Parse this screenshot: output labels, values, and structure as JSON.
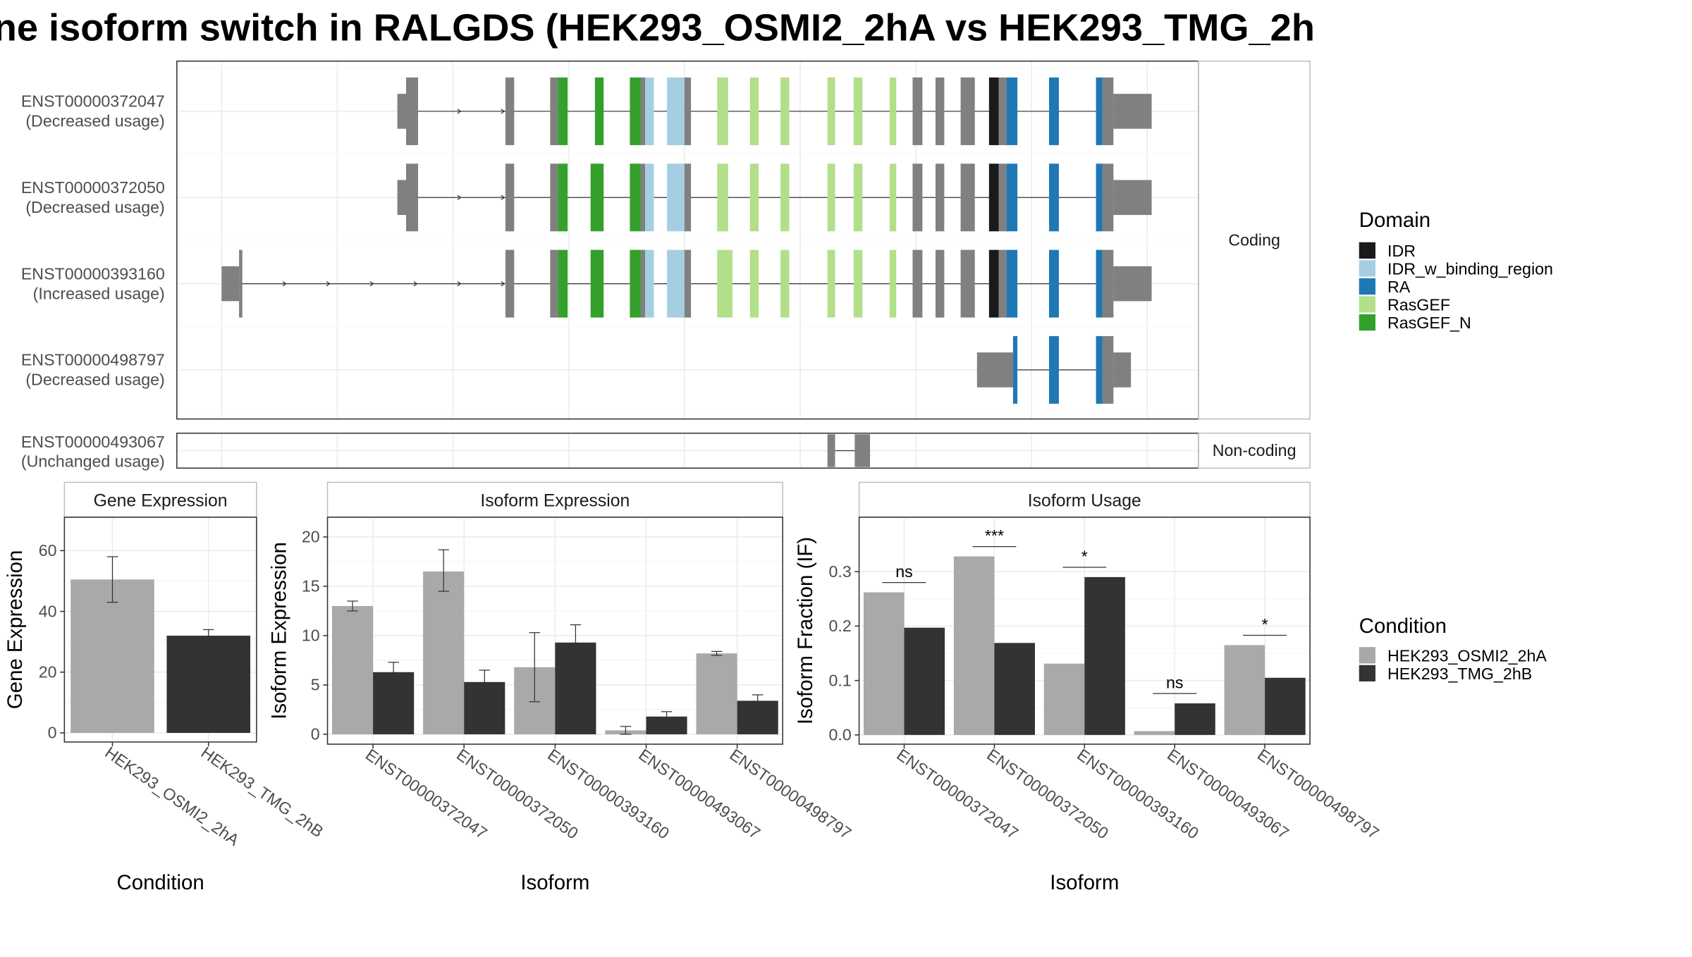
{
  "title": "ne isoform switch in RALGDS (HEK293_OSMI2_2hA vs HEK293_TMG_2h",
  "colors": {
    "IDR": "#1a1a1a",
    "IDR_w_binding_region": "#a6cee3",
    "RA": "#1f78b4",
    "RasGEF": "#b2df8a",
    "RasGEF_N": "#33a02c",
    "none": "#808080",
    "cond_a": "#a9a9a9",
    "cond_b": "#333333"
  },
  "structure": {
    "facet_coding": "Coding",
    "facet_noncoding": "Non-coding",
    "transcripts": [
      {
        "id": "ENST00000372047",
        "usage": "(Decreased usage)",
        "group": "coding",
        "start": 364,
        "end": 1055,
        "exons": [
          [
            364,
            372,
            "n"
          ],
          [
            372,
            383,
            "n"
          ],
          [
            463,
            471,
            "n"
          ],
          [
            504,
            511,
            "n"
          ],
          [
            511,
            520,
            "RasGEF_N"
          ],
          [
            545,
            553,
            "RasGEF_N"
          ],
          [
            577,
            587,
            "RasGEF_N"
          ],
          [
            587,
            591,
            "n"
          ],
          [
            591,
            599,
            "IDR_w_binding_region"
          ],
          [
            611,
            627,
            "IDR_w_binding_region"
          ],
          [
            627,
            633,
            "n"
          ],
          [
            657,
            667,
            "RasGEF"
          ],
          [
            687,
            695,
            "RasGEF"
          ],
          [
            715,
            723,
            "RasGEF"
          ],
          [
            758,
            765,
            "RasGEF"
          ],
          [
            782,
            790,
            "RasGEF"
          ],
          [
            815,
            821,
            "RasGEF"
          ],
          [
            836,
            845,
            "n"
          ],
          [
            857,
            865,
            "n"
          ],
          [
            880,
            893,
            "n"
          ],
          [
            906,
            915,
            "IDR"
          ],
          [
            915,
            922,
            "n"
          ],
          [
            922,
            932,
            "RA"
          ],
          [
            961,
            970,
            "RA"
          ],
          [
            1004,
            1010,
            "RA"
          ],
          [
            1010,
            1020,
            "n"
          ],
          [
            1020,
            1055,
            "n"
          ]
        ],
        "utr": [
          [
            364,
            372
          ],
          [
            1020,
            1055
          ]
        ],
        "arrows": [
          422,
          462
        ]
      },
      {
        "id": "ENST00000372050",
        "usage": "(Decreased usage)",
        "group": "coding",
        "start": 364,
        "end": 1055,
        "exons": [
          [
            364,
            372,
            "n"
          ],
          [
            372,
            383,
            "n"
          ],
          [
            463,
            471,
            "n"
          ],
          [
            504,
            511,
            "n"
          ],
          [
            511,
            520,
            "RasGEF_N"
          ],
          [
            541,
            553,
            "RasGEF_N"
          ],
          [
            577,
            587,
            "RasGEF_N"
          ],
          [
            587,
            591,
            "n"
          ],
          [
            591,
            599,
            "IDR_w_binding_region"
          ],
          [
            611,
            627,
            "IDR_w_binding_region"
          ],
          [
            627,
            633,
            "n"
          ],
          [
            657,
            667,
            "RasGEF"
          ],
          [
            687,
            695,
            "RasGEF"
          ],
          [
            715,
            723,
            "RasGEF"
          ],
          [
            758,
            765,
            "RasGEF"
          ],
          [
            782,
            790,
            "RasGEF"
          ],
          [
            815,
            821,
            "RasGEF"
          ],
          [
            836,
            845,
            "n"
          ],
          [
            857,
            865,
            "n"
          ],
          [
            880,
            893,
            "n"
          ],
          [
            906,
            915,
            "IDR"
          ],
          [
            915,
            922,
            "n"
          ],
          [
            922,
            932,
            "RA"
          ],
          [
            961,
            970,
            "RA"
          ],
          [
            1004,
            1010,
            "RA"
          ],
          [
            1010,
            1020,
            "n"
          ],
          [
            1020,
            1055,
            "n"
          ]
        ],
        "utr": [
          [
            364,
            372
          ],
          [
            1020,
            1055
          ]
        ],
        "arrows": [
          422,
          462
        ]
      },
      {
        "id": "ENST00000393160",
        "usage": "(Increased usage)",
        "group": "coding",
        "start": 203,
        "end": 1055,
        "exons": [
          [
            203,
            219,
            "n"
          ],
          [
            219,
            222,
            "n"
          ],
          [
            463,
            471,
            "n"
          ],
          [
            504,
            511,
            "n"
          ],
          [
            511,
            520,
            "RasGEF_N"
          ],
          [
            541,
            553,
            "RasGEF_N"
          ],
          [
            577,
            587,
            "RasGEF_N"
          ],
          [
            587,
            591,
            "n"
          ],
          [
            591,
            599,
            "IDR_w_binding_region"
          ],
          [
            611,
            627,
            "IDR_w_binding_region"
          ],
          [
            627,
            633,
            "n"
          ],
          [
            657,
            671,
            "RasGEF"
          ],
          [
            687,
            695,
            "RasGEF"
          ],
          [
            715,
            723,
            "RasGEF"
          ],
          [
            758,
            765,
            "RasGEF"
          ],
          [
            782,
            790,
            "RasGEF"
          ],
          [
            815,
            821,
            "RasGEF"
          ],
          [
            836,
            845,
            "n"
          ],
          [
            857,
            865,
            "n"
          ],
          [
            880,
            893,
            "n"
          ],
          [
            906,
            915,
            "IDR"
          ],
          [
            915,
            922,
            "n"
          ],
          [
            922,
            932,
            "RA"
          ],
          [
            961,
            970,
            "RA"
          ],
          [
            1004,
            1010,
            "RA"
          ],
          [
            1010,
            1020,
            "n"
          ],
          [
            1020,
            1055,
            "n"
          ]
        ],
        "utr": [
          [
            203,
            219
          ],
          [
            1020,
            1055
          ]
        ],
        "arrows": [
          262,
          302,
          342,
          382,
          422,
          462
        ]
      },
      {
        "id": "ENST00000498797",
        "usage": "(Decreased usage)",
        "group": "coding",
        "start": 895,
        "end": 1036,
        "exons": [
          [
            895,
            928,
            "n"
          ],
          [
            928,
            932,
            "RA"
          ],
          [
            961,
            970,
            "RA"
          ],
          [
            1004,
            1010,
            "RA"
          ],
          [
            1010,
            1020,
            "n"
          ],
          [
            1020,
            1036,
            "n"
          ]
        ],
        "utr": [
          [
            895,
            928
          ],
          [
            1020,
            1036
          ]
        ],
        "arrows": []
      },
      {
        "id": "ENST00000493067",
        "usage": "(Unchanged usage)",
        "group": "noncoding",
        "start": 758,
        "end": 797,
        "exons": [
          [
            758,
            765,
            "n"
          ],
          [
            783,
            797,
            "n"
          ]
        ],
        "utr": [],
        "arrows": []
      }
    ]
  },
  "legend_domain": {
    "title": "Domain",
    "items": [
      "IDR",
      "IDR_w_binding_region",
      "RA",
      "RasGEF",
      "RasGEF_N"
    ]
  },
  "legend_condition": {
    "title": "Condition",
    "items": [
      "HEK293_OSMI2_2hA",
      "HEK293_TMG_2hB"
    ]
  },
  "chart_data": [
    {
      "type": "bar",
      "title": "Gene Expression",
      "xlabel": "Condition",
      "ylabel": "Gene Expression",
      "categories": [
        "HEK293_OSMI2_2hA",
        "HEK293_TMG_2hB"
      ],
      "values": [
        50.5,
        32.0
      ],
      "errors": [
        [
          43.0,
          58.0
        ],
        [
          30.0,
          34.0
        ]
      ],
      "yticks": [
        "0",
        "20",
        "40",
        "60"
      ],
      "ylim": [
        -3,
        71
      ]
    },
    {
      "type": "bar",
      "title": "Isoform Expression",
      "xlabel": "Isoform",
      "ylabel": "Isoform Expression",
      "categories": [
        "ENST00000372047",
        "ENST00000372050",
        "ENST00000393160",
        "ENST00000493067",
        "ENST00000498797"
      ],
      "series": [
        {
          "name": "HEK293_OSMI2_2hA",
          "values": [
            13.0,
            16.5,
            6.8,
            0.4,
            8.2
          ],
          "errors": [
            [
              12.5,
              13.5
            ],
            [
              14.5,
              18.7
            ],
            [
              3.3,
              10.3
            ],
            [
              0.0,
              0.8
            ],
            [
              8.0,
              8.4
            ]
          ]
        },
        {
          "name": "HEK293_TMG_2hB",
          "values": [
            6.3,
            5.3,
            9.3,
            1.8,
            3.4
          ],
          "errors": [
            [
              5.3,
              7.3
            ],
            [
              4.1,
              6.5
            ],
            [
              7.5,
              11.1
            ],
            [
              1.3,
              2.3
            ],
            [
              2.8,
              4.0
            ]
          ]
        }
      ],
      "yticks": [
        "0",
        "5",
        "10",
        "15",
        "20"
      ],
      "ylim": [
        -1,
        22
      ]
    },
    {
      "type": "bar",
      "title": "Isoform Usage",
      "xlabel": "Isoform",
      "ylabel": "Isoform Fraction (IF)",
      "categories": [
        "ENST00000372047",
        "ENST00000372050",
        "ENST00000393160",
        "ENST00000493067",
        "ENST00000498797"
      ],
      "series": [
        {
          "name": "HEK293_OSMI2_2hA",
          "values": [
            0.262,
            0.328,
            0.131,
            0.007,
            0.165
          ]
        },
        {
          "name": "HEK293_TMG_2hB",
          "values": [
            0.197,
            0.169,
            0.29,
            0.058,
            0.105
          ]
        }
      ],
      "significance": [
        "ns",
        "***",
        "*",
        "ns",
        "*"
      ],
      "sig_y": [
        0.28,
        0.346,
        0.308,
        0.076,
        0.183
      ],
      "yticks": [
        "0.0",
        "0.1",
        "0.2",
        "0.3"
      ],
      "ylim": [
        -0.017,
        0.4
      ]
    }
  ]
}
